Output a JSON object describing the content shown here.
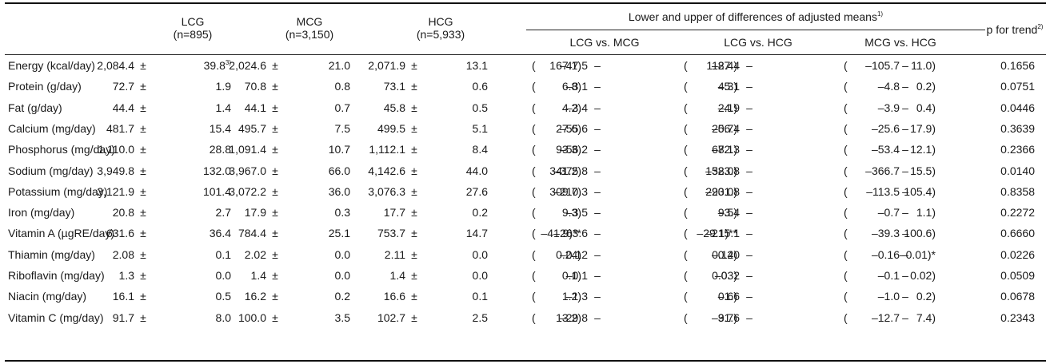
{
  "header": {
    "groups": [
      {
        "name": "LCG",
        "n": "(n=895)"
      },
      {
        "name": "MCG",
        "n": "(n=3,150)"
      },
      {
        "name": "HCG",
        "n": "(n=5,933)"
      }
    ],
    "diff_title": "Lower and upper of differences of adjusted means",
    "diff_title_note": "1)",
    "comparisons": [
      "LCG vs. MCG",
      "LCG vs. HCG",
      "MCG vs. HCG"
    ],
    "p_trend": "p for trend",
    "p_trend_note": "2)",
    "pm": "±",
    "open": "(",
    "dash": "–"
  },
  "rows": [
    {
      "label": "Energy (kcal/day)",
      "lcg_m": "2,084.4",
      "lcg_se": "39.8",
      "lcg_note": "3)",
      "mcg_m": "2,024.6",
      "mcg_se": "21.0",
      "hcg_m": "2,071.9",
      "hcg_se": "13.1",
      "d1_lo": "–47.5",
      "d1_hi": "167.1)",
      "d2_lo": "–87.4",
      "d2_hi": "112.4)",
      "d3_lo": "–105.7",
      "d3_hi": "11.0)",
      "p": "0.1656",
      "d1_open": true,
      "d2_open": true,
      "d3_open": false
    },
    {
      "label": "Protein (g/day)",
      "lcg_m": "72.7",
      "lcg_se": "1.9",
      "mcg_m": "70.8",
      "mcg_se": "0.8",
      "hcg_m": "73.1",
      "hcg_se": "0.6",
      "d1_lo": "–3.1",
      "d1_hi": "6.8)",
      "d2_lo": "–5.1",
      "d2_hi": "4.3)",
      "d3_lo": "–4.8",
      "d3_hi": "0.2)",
      "p": "0.0751",
      "d1_open": true,
      "d2_open": true,
      "d3_open": true
    },
    {
      "label": "Fat (g/day)",
      "lcg_m": "44.4",
      "lcg_se": "1.4",
      "mcg_m": "44.1",
      "mcg_se": "0.7",
      "hcg_m": "45.8",
      "hcg_se": "0.5",
      "d1_lo": "–3.4",
      "d1_hi": "4.2)",
      "d2_lo": "–4.9",
      "d2_hi": "2.1)",
      "d3_lo": "–3.9",
      "d3_hi": "0.4)",
      "p": "0.0446",
      "d1_open": true,
      "d2_open": true,
      "d3_open": true
    },
    {
      "label": "Calcium (mg/day)",
      "lcg_m": "481.7",
      "lcg_se": "15.4",
      "mcg_m": "495.7",
      "mcg_se": "7.5",
      "hcg_m": "499.5",
      "hcg_se": "5.1",
      "d1_lo": "–55.6",
      "d1_hi": "27.6)",
      "d2_lo": "–56.4",
      "d2_hi": "20.7)",
      "d3_lo": "–25.6",
      "d3_hi": "17.9)",
      "p": "0.3639",
      "d1_open": true,
      "d2_open": true,
      "d3_open": true
    },
    {
      "label": "Phosphorus (mg/day)",
      "lcg_m": "1,110.0",
      "lcg_se": "28.8",
      "mcg_m": "1,091.4",
      "mcg_se": "10.7",
      "hcg_m": "1,112.1",
      "hcg_se": "8.4",
      "d1_lo": "–56.2",
      "d1_hi": "93.3)",
      "d2_lo": "–72.3",
      "d2_hi": "68.1)",
      "d3_lo": "–53.4",
      "d3_hi": "12.1)",
      "p": "0.2366",
      "d1_open": true,
      "d2_open": true,
      "d3_open": true
    },
    {
      "label": "Sodium (mg/day)",
      "lcg_m": "3,949.8",
      "lcg_se": "132.0",
      "mcg_m": "3,967.0",
      "mcg_se": "66.0",
      "hcg_m": "4,142.6",
      "hcg_se": "44.0",
      "d1_lo": "–375.8",
      "d1_hi": "341.2)",
      "d2_lo": "–523.8",
      "d2_hi": "138.0)",
      "d3_lo": "–366.7",
      "d3_hi": "15.5)",
      "p": "0.0140",
      "d1_open": false,
      "d2_open": false,
      "d3_open": false
    },
    {
      "label": "Potassium (mg/day)",
      "lcg_m": "3,121.9",
      "lcg_se": "101.4",
      "mcg_m": "3,072.2",
      "mcg_se": "36.0",
      "hcg_m": "3,076.3",
      "hcg_se": "27.6",
      "d1_lo": "–210.3",
      "d1_hi": "309.7)",
      "d2_lo": "–201.8",
      "d2_hi": "293.0)",
      "d3_lo": "–113.5",
      "d3_hi": "105.4)",
      "p": "0.8358",
      "d1_open": false,
      "d2_open": false,
      "d3_open": false
    },
    {
      "label": "Iron (mg/day)",
      "lcg_m": "20.8",
      "lcg_se": "2.7",
      "mcg_m": "17.9",
      "mcg_se": "0.3",
      "hcg_m": "17.7",
      "hcg_se": "0.2",
      "d1_lo": "–3.5",
      "d1_hi": "9.3)",
      "d2_lo": "–3.4",
      "d2_hi": "9.5)",
      "d3_lo": "–0.7",
      "d3_hi": "1.1)",
      "p": "0.2272",
      "d1_open": true,
      "d2_open": true,
      "d3_open": true
    },
    {
      "label": "Vitamin A (µgRE/day)",
      "lcg_m": "631.6",
      "lcg_se": "36.4",
      "mcg_m": "784.4",
      "mcg_se": "25.1",
      "hcg_m": "753.7",
      "hcg_se": "14.7",
      "d1_lo": "–263.6",
      "d1_hi": "–41.9)**",
      "d2_lo": "–215.1",
      "d2_hi": "–29.1)**",
      "d3_lo": "–39.3",
      "d3_hi": "100.6)",
      "p": "0.6660",
      "d1_open": false,
      "d2_open": false,
      "d3_open": true
    },
    {
      "label": "Thiamin (mg/day)",
      "lcg_m": "2.08",
      "lcg_se": "0.1",
      "mcg_m": "2.02",
      "mcg_se": "0.0",
      "hcg_m": "2.11",
      "hcg_se": "0.0",
      "d1_lo": "–0.12",
      "d1_hi": "0.24)",
      "d2_lo": "–0.20",
      "d2_hi": "0.14)",
      "d3_lo": "–0.16",
      "d3_hi": "–0.01)*",
      "p": "0.0226",
      "d1_open": true,
      "d2_open": true,
      "d3_open": true
    },
    {
      "label": "Riboflavin (mg/day)",
      "lcg_m": "1.3",
      "lcg_se": "0.0",
      "mcg_m": "1.4",
      "mcg_se": "0.0",
      "hcg_m": "1.4",
      "hcg_se": "0.0",
      "d1_lo": "–0.1",
      "d1_hi": "0.1)",
      "d2_lo": "–0. 2",
      "d2_hi": "0.03)",
      "d3_lo": "–0.1",
      "d3_hi": "0.02)",
      "p": "0.0509",
      "d1_open": true,
      "d2_open": true,
      "d3_open": true
    },
    {
      "label": "Niacin (mg/day)",
      "lcg_m": "16.1",
      "lcg_se": "0.5",
      "mcg_m": "16.2",
      "mcg_se": "0.2",
      "hcg_m": "16.6",
      "hcg_se": "0.1",
      "d1_lo": "–1.3",
      "d1_hi": "1.2)",
      "d2_lo": "–1.6",
      "d2_hi": "0.6)",
      "d3_lo": "–1.0",
      "d3_hi": "0.2)",
      "p": "0.0678",
      "d1_open": true,
      "d2_open": true,
      "d3_open": true
    },
    {
      "label": "Vitamin C (mg/day)",
      "lcg_m": "91.7",
      "lcg_se": "8.0",
      "mcg_m": "100.0",
      "mcg_se": "3.5",
      "hcg_m": "102.7",
      "hcg_se": "2.5",
      "d1_lo": "–29.8",
      "d1_hi": "13.2)",
      "d2_lo": "–31.6",
      "d2_hi": "9.7)",
      "d3_lo": "–12.7",
      "d3_hi": "7.4)",
      "p": "0.2343",
      "d1_open": true,
      "d2_open": true,
      "d3_open": true
    }
  ]
}
